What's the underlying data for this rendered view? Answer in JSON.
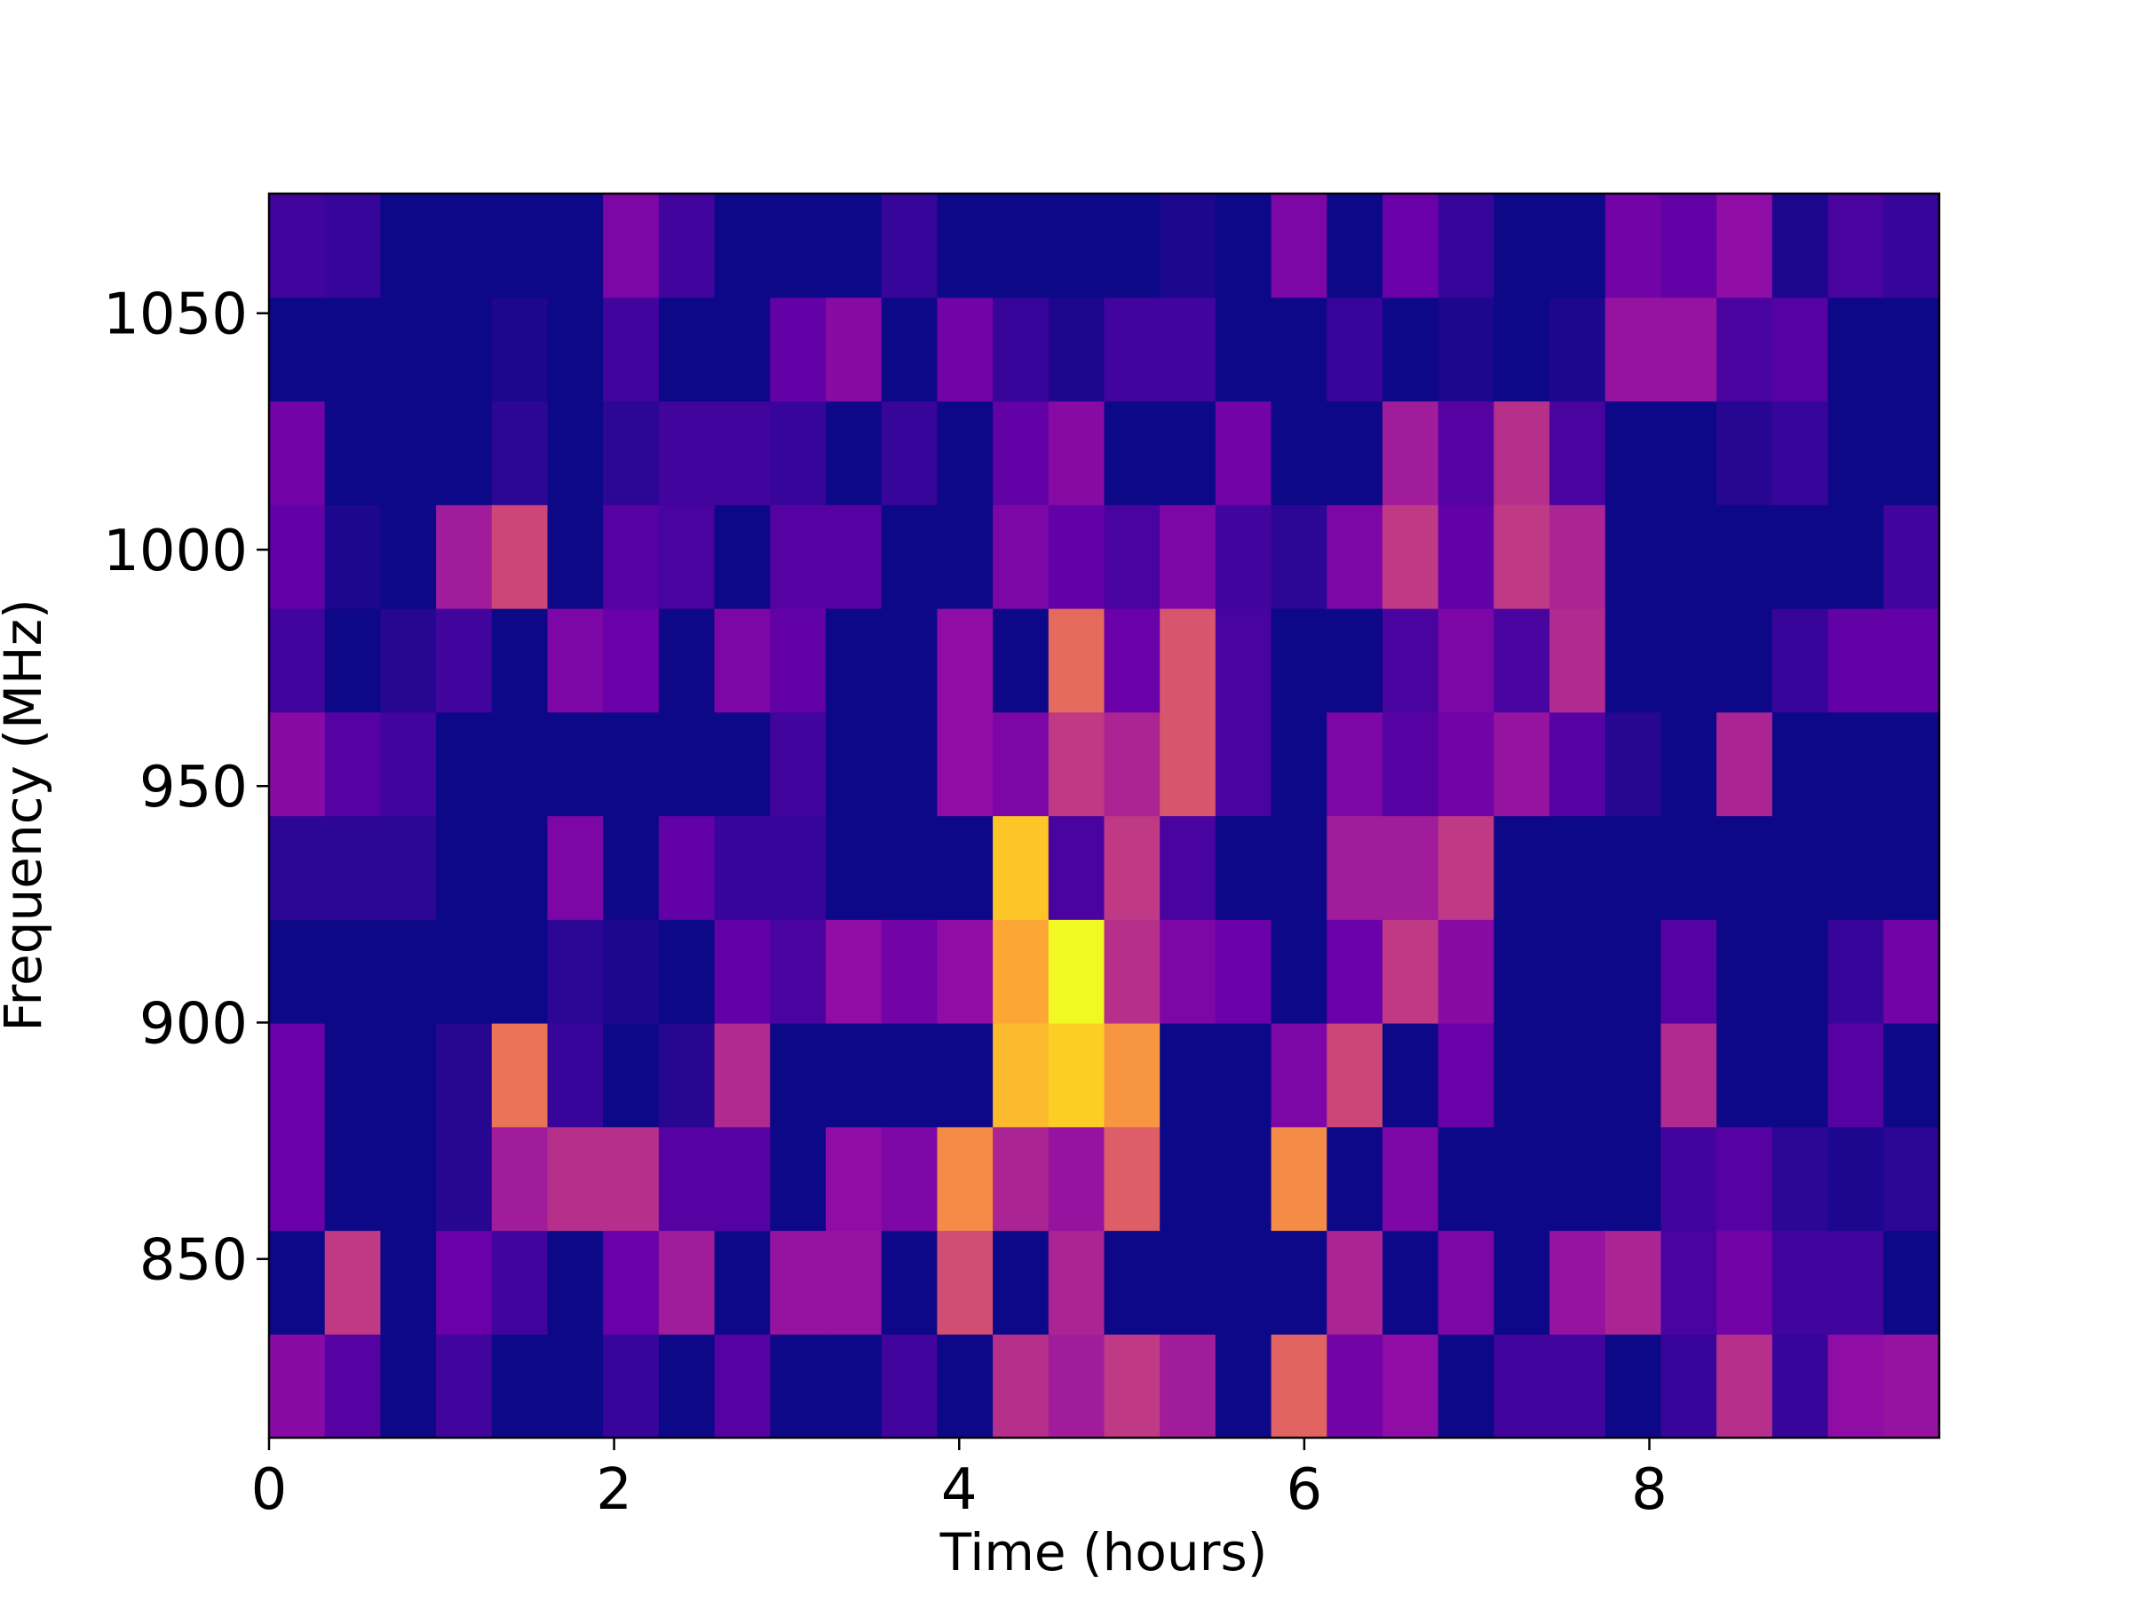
{
  "chart_data": {
    "type": "heatmap",
    "colormap": "plasma",
    "xlabel": "Time (hours)",
    "ylabel": "Frequency (MHz)",
    "xlim": [
      0,
      9.68
    ],
    "xticks": [
      0,
      2,
      4,
      6,
      8
    ],
    "ylim": [
      812.2,
      1075.3
    ],
    "yticks": [
      850,
      900,
      950,
      1000,
      1050
    ],
    "z": [
      [
        0.28,
        0.15,
        0,
        0.1,
        0,
        0,
        0.08,
        0,
        0.15,
        0,
        0,
        0.1,
        0,
        0.42,
        0.35,
        0.45,
        0.35,
        0,
        0.6,
        0.22,
        0.3,
        0,
        0.1,
        0.1,
        0,
        0.08,
        0.42,
        0.08,
        0.3,
        0.32
      ],
      [
        0,
        0.45,
        0,
        0.2,
        0.1,
        0,
        0.2,
        0.35,
        0,
        0.32,
        0.32,
        0,
        0.52,
        0,
        0.38,
        0,
        0,
        0,
        0,
        0.38,
        0,
        0.25,
        0,
        0.32,
        0.38,
        0.12,
        0.22,
        0.1,
        0.1,
        0
      ],
      [
        0.2,
        0,
        0,
        0.05,
        0.35,
        0.42,
        0.42,
        0.15,
        0.15,
        0,
        0.3,
        0.25,
        0.72,
        0.38,
        0.32,
        0.58,
        0,
        0,
        0.72,
        0,
        0.25,
        0,
        0,
        0,
        0,
        0.1,
        0.15,
        0.06,
        0.03,
        0.06
      ],
      [
        0.2,
        0,
        0,
        0.05,
        0.65,
        0.08,
        0,
        0.05,
        0.4,
        0,
        0,
        0,
        0,
        0.85,
        0.9,
        0.75,
        0,
        0,
        0.25,
        0.5,
        0,
        0.2,
        0,
        0,
        0,
        0.4,
        0,
        0,
        0.15,
        0
      ],
      [
        0,
        0,
        0,
        0,
        0,
        0.06,
        0.03,
        0,
        0.18,
        0.12,
        0.3,
        0.22,
        0.3,
        0.8,
        1.0,
        0.42,
        0.25,
        0.2,
        0,
        0.2,
        0.45,
        0.28,
        0,
        0,
        0,
        0.15,
        0,
        0,
        0.08,
        0.22
      ],
      [
        0.06,
        0.06,
        0.06,
        0,
        0,
        0.25,
        0,
        0.18,
        0.08,
        0.08,
        0,
        0,
        0,
        0.88,
        0.12,
        0.45,
        0.12,
        0,
        0,
        0.35,
        0.35,
        0.45,
        0,
        0,
        0,
        0,
        0,
        0,
        0,
        0
      ],
      [
        0.28,
        0.15,
        0.1,
        0,
        0,
        0,
        0,
        0,
        0,
        0.1,
        0,
        0,
        0.3,
        0.25,
        0.45,
        0.38,
        0.55,
        0.12,
        0,
        0.25,
        0.15,
        0.22,
        0.32,
        0.15,
        0.05,
        0,
        0.38,
        0,
        0,
        0
      ],
      [
        0.1,
        0,
        0.05,
        0.1,
        0,
        0.25,
        0.2,
        0,
        0.25,
        0.18,
        0,
        0,
        0.3,
        0,
        0.62,
        0.2,
        0.55,
        0.12,
        0,
        0,
        0.12,
        0.25,
        0.12,
        0.4,
        0,
        0,
        0,
        0.08,
        0.18,
        0.18
      ],
      [
        0.18,
        0.03,
        0,
        0.35,
        0.5,
        0,
        0.15,
        0.12,
        0,
        0.15,
        0.15,
        0,
        0,
        0.25,
        0.18,
        0.12,
        0.25,
        0.1,
        0.06,
        0.25,
        0.45,
        0.18,
        0.45,
        0.38,
        0,
        0,
        0,
        0,
        0,
        0.1
      ],
      [
        0.22,
        0,
        0,
        0,
        0.06,
        0,
        0.06,
        0.1,
        0.1,
        0.08,
        0,
        0.08,
        0,
        0.18,
        0.28,
        0,
        0,
        0.22,
        0,
        0,
        0.35,
        0.15,
        0.42,
        0.12,
        0,
        0,
        0.05,
        0.08,
        0,
        0
      ],
      [
        0,
        0,
        0,
        0,
        0.03,
        0,
        0.1,
        0,
        0,
        0.18,
        0.28,
        0,
        0.22,
        0.08,
        0.03,
        0.1,
        0.1,
        0,
        0,
        0.08,
        0,
        0.03,
        0,
        0.03,
        0.32,
        0.32,
        0.12,
        0.15,
        0,
        0
      ],
      [
        0.1,
        0.08,
        0,
        0,
        0,
        0,
        0.25,
        0.1,
        0,
        0,
        0,
        0.08,
        0,
        0,
        0,
        0,
        0.03,
        0,
        0.25,
        0,
        0.2,
        0.08,
        0,
        0,
        0.22,
        0.18,
        0.3,
        0.03,
        0.12,
        0.08
      ]
    ]
  }
}
